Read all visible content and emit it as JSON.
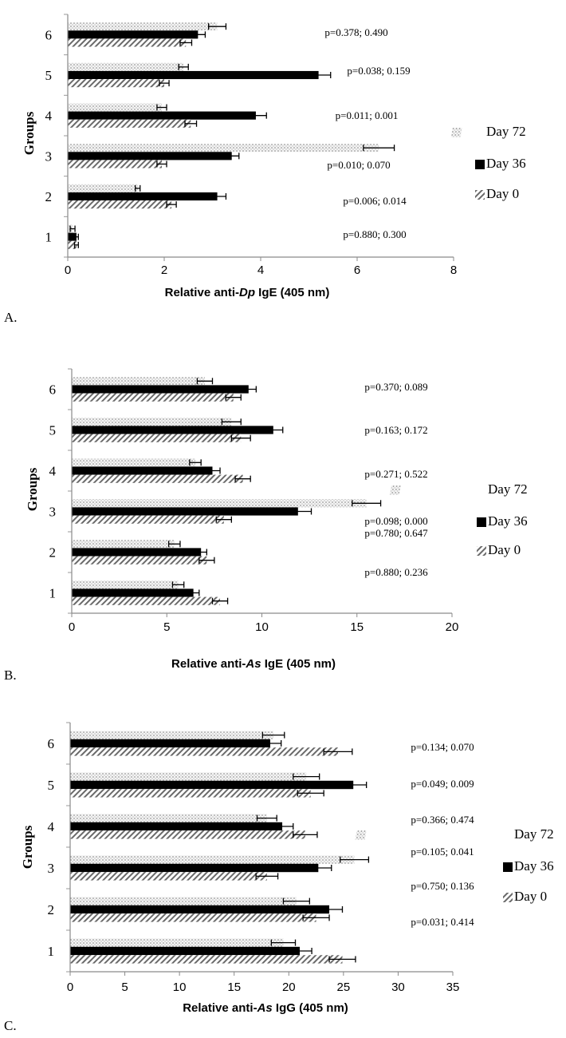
{
  "chart_data": [
    {
      "type": "bar",
      "panel_label": "A.",
      "xlabel": "Relative anti-Dp IgE (405 nm)",
      "xlabel_parts": [
        "Relative anti-",
        "Dp",
        " IgE (405 nm)"
      ],
      "ylabel": "Groups",
      "categories": [
        "1",
        "2",
        "3",
        "4",
        "5",
        "6"
      ],
      "xlim": [
        0,
        8
      ],
      "xticks": [
        "0",
        "2",
        "4",
        "6",
        "8"
      ],
      "series": [
        {
          "name": "Day 72",
          "values": [
            0.1,
            1.45,
            6.45,
            1.95,
            2.4,
            3.1
          ],
          "errors": [
            0.05,
            0.05,
            0.32,
            0.1,
            0.1,
            0.18
          ]
        },
        {
          "name": "Day 36",
          "values": [
            0.18,
            3.1,
            3.4,
            3.9,
            5.2,
            2.7
          ],
          "errors": [
            0.04,
            0.18,
            0.15,
            0.22,
            0.25,
            0.15
          ]
        },
        {
          "name": "Day 0",
          "values": [
            0.18,
            2.15,
            1.95,
            2.55,
            2.0,
            2.45
          ],
          "errors": [
            0.04,
            0.1,
            0.1,
            0.12,
            0.1,
            0.12
          ]
        }
      ],
      "pvalues": [
        "p=0.880; 0.300",
        "p=0.006; 0.014",
        "p=0.010; 0.070",
        "p=0.011; 0.001",
        "p=0.038; 0.159",
        "p=0.378; 0.490"
      ],
      "legend": [
        "Day 72",
        "Day 36",
        "Day 0"
      ],
      "grid": false
    },
    {
      "type": "bar",
      "panel_label": "B.",
      "xlabel": "Relative anti-As IgE (405 nm)",
      "xlabel_parts": [
        "Relative anti-",
        "As",
        " IgE (405 nm)"
      ],
      "ylabel": "Groups",
      "categories": [
        "1",
        "2",
        "3",
        "4",
        "5",
        "6"
      ],
      "xlim": [
        0,
        20
      ],
      "xticks": [
        "0",
        "5",
        "10",
        "15",
        "20"
      ],
      "series": [
        {
          "name": "Day 72",
          "values": [
            5.6,
            5.4,
            15.5,
            6.5,
            8.4,
            7.0
          ],
          "errors": [
            0.3,
            0.3,
            0.75,
            0.3,
            0.5,
            0.4
          ]
        },
        {
          "name": "Day 36",
          "values": [
            6.4,
            6.8,
            11.9,
            7.4,
            10.6,
            9.3
          ],
          "errors": [
            0.3,
            0.3,
            0.7,
            0.4,
            0.5,
            0.4
          ]
        },
        {
          "name": "Day 0",
          "values": [
            7.8,
            7.1,
            8.0,
            9.0,
            8.9,
            8.5
          ],
          "errors": [
            0.4,
            0.4,
            0.4,
            0.4,
            0.5,
            0.4
          ]
        }
      ],
      "pvalues": [
        "p=0.880; 0.236",
        "p=0.780; 0.647",
        "p=0.098; 0.000",
        "p=0.271; 0.522",
        "p=0.163; 0.172",
        "p=0.370; 0.089"
      ],
      "legend": [
        "Day 72",
        "Day 36",
        "Day 0"
      ],
      "grid": false
    },
    {
      "type": "bar",
      "panel_label": "C.",
      "xlabel": "Relative anti-As IgG (405 nm)",
      "xlabel_parts": [
        "Relative anti-",
        "As",
        " IgG (405 nm)"
      ],
      "ylabel": "Groups",
      "categories": [
        "1",
        "2",
        "3",
        "4",
        "5",
        "6"
      ],
      "xlim": [
        0,
        35
      ],
      "xticks": [
        "0",
        "5",
        "10",
        "15",
        "20",
        "25",
        "30",
        "35"
      ],
      "series": [
        {
          "name": "Day 72",
          "values": [
            19.5,
            20.7,
            26.0,
            18.0,
            21.6,
            18.6
          ],
          "errors": [
            1.1,
            1.2,
            1.3,
            0.9,
            1.2,
            1.0
          ]
        },
        {
          "name": "Day 36",
          "values": [
            21.0,
            23.7,
            22.7,
            19.4,
            25.9,
            18.3
          ],
          "errors": [
            1.1,
            1.2,
            1.2,
            1.0,
            1.2,
            1.0
          ]
        },
        {
          "name": "Day 0",
          "values": [
            24.9,
            22.5,
            18.0,
            21.5,
            22.0,
            24.5
          ],
          "errors": [
            1.2,
            1.2,
            1.0,
            1.1,
            1.2,
            1.3
          ]
        }
      ],
      "pvalues": [
        "p=0.031; 0.414",
        "p=0.750; 0.136",
        "p=0.105; 0.041",
        "p=0.366; 0.474",
        "p=0.049; 0.009",
        "p=0.134; 0.070"
      ],
      "legend": [
        "Day 72",
        "Day 36",
        "Day 0"
      ],
      "grid": false
    }
  ]
}
